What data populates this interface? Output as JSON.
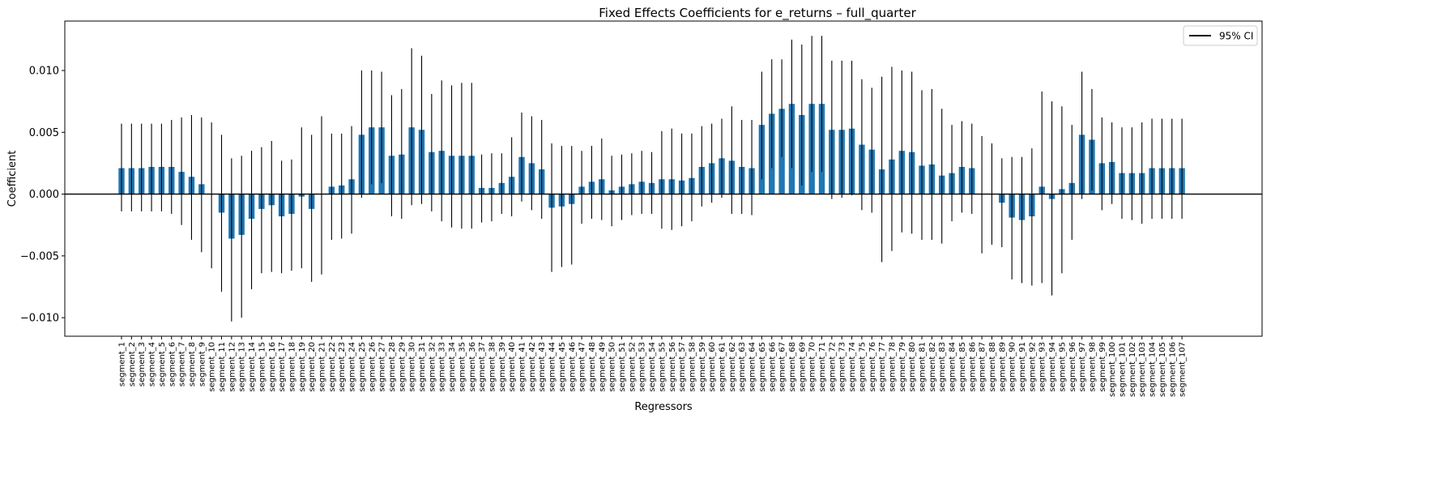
{
  "chart_data": {
    "type": "bar",
    "title": "Fixed Effects Coefficients for e_returns – full_quarter",
    "xlabel": "Regressors",
    "ylabel": "Coefficient",
    "ylim": [
      -0.0115,
      0.014
    ],
    "yticks": [
      -0.01,
      -0.005,
      0.0,
      0.005,
      0.01
    ],
    "ytick_labels": [
      "−0.010",
      "−0.005",
      "0.000",
      "0.005",
      "0.010"
    ],
    "legend": {
      "label": "95% CI",
      "placement": "top-right"
    },
    "bar_color": "#1f77b4",
    "errorbar_color": "#000000",
    "zero_line": true,
    "grid": false,
    "categories": [
      "segment_1",
      "segment_2",
      "segment_3",
      "segment_4",
      "segment_5",
      "segment_6",
      "segment_7",
      "segment_8",
      "segment_9",
      "segment_10",
      "segment_11",
      "segment_12",
      "segment_13",
      "segment_14",
      "segment_15",
      "segment_16",
      "segment_17",
      "segment_18",
      "segment_19",
      "segment_20",
      "segment_21",
      "segment_22",
      "segment_23",
      "segment_24",
      "segment_25",
      "segment_26",
      "segment_27",
      "segment_28",
      "segment_29",
      "segment_30",
      "segment_31",
      "segment_32",
      "segment_33",
      "segment_34",
      "segment_35",
      "segment_36",
      "segment_37",
      "segment_38",
      "segment_39",
      "segment_40",
      "segment_41",
      "segment_42",
      "segment_43",
      "segment_44",
      "segment_45",
      "segment_46",
      "segment_47",
      "segment_48",
      "segment_49",
      "segment_50",
      "segment_51",
      "segment_52",
      "segment_53",
      "segment_54",
      "segment_55",
      "segment_56",
      "segment_57",
      "segment_58",
      "segment_59",
      "segment_60",
      "segment_61",
      "segment_62",
      "segment_63",
      "segment_64",
      "segment_65",
      "segment_66",
      "segment_67",
      "segment_68",
      "segment_69",
      "segment_70",
      "segment_71",
      "segment_72",
      "segment_73",
      "segment_74",
      "segment_75",
      "segment_76",
      "segment_77",
      "segment_78",
      "segment_79",
      "segment_80",
      "segment_81",
      "segment_82",
      "segment_83",
      "segment_84",
      "segment_85",
      "segment_86",
      "segment_87",
      "segment_88",
      "segment_89",
      "segment_90",
      "segment_91",
      "segment_92",
      "segment_93",
      "segment_94",
      "segment_95",
      "segment_96",
      "segment_97",
      "segment_98",
      "segment_99",
      "segment_100",
      "segment_101",
      "segment_102",
      "segment_103",
      "segment_104",
      "segment_105",
      "segment_106",
      "segment_107"
    ],
    "values": [
      0.0021,
      0.0021,
      0.0021,
      0.0022,
      0.0022,
      0.0022,
      0.0018,
      0.0014,
      0.0008,
      0.0,
      -0.0015,
      -0.0036,
      -0.0033,
      -0.002,
      -0.0012,
      -0.0009,
      -0.0018,
      -0.0016,
      -0.0002,
      -0.0012,
      0.0,
      0.0006,
      0.0007,
      0.0012,
      0.0048,
      0.0054,
      0.0054,
      0.0031,
      0.0032,
      0.0054,
      0.0052,
      0.0034,
      0.0035,
      0.0031,
      0.0031,
      0.0031,
      0.0005,
      0.0005,
      0.0009,
      0.0014,
      0.003,
      0.0025,
      0.002,
      -0.0011,
      -0.001,
      -0.0008,
      0.0006,
      0.001,
      0.0012,
      0.0003,
      0.0006,
      0.0008,
      0.001,
      0.0009,
      0.0012,
      0.0012,
      0.0011,
      0.0013,
      0.0022,
      0.0025,
      0.0029,
      0.0027,
      0.0022,
      0.0021,
      0.0056,
      0.0065,
      0.0069,
      0.0073,
      0.0064,
      0.0073,
      0.0073,
      0.0052,
      0.0052,
      0.0053,
      0.004,
      0.0036,
      0.002,
      0.0028,
      0.0035,
      0.0034,
      0.0023,
      0.0024,
      0.0015,
      0.0017,
      0.0022,
      0.0021,
      0.0,
      0.0,
      -0.0007,
      -0.0019,
      -0.0021,
      -0.0018,
      0.0006,
      -0.0004,
      0.0004,
      0.0009,
      0.0048,
      0.0044,
      0.0025,
      0.0026,
      0.0017,
      0.0017,
      0.0017,
      0.0021,
      0.0021,
      0.0021,
      0.0021
    ],
    "ci_lower": [
      -0.0014,
      -0.0014,
      -0.0014,
      -0.0014,
      -0.0014,
      -0.0016,
      -0.0025,
      -0.0037,
      -0.0047,
      -0.006,
      -0.0079,
      -0.0103,
      -0.01,
      -0.0077,
      -0.0064,
      -0.0063,
      -0.0064,
      -0.0062,
      -0.006,
      -0.0071,
      -0.0065,
      -0.0037,
      -0.0036,
      -0.0032,
      -0.0003,
      0.0008,
      0.0009,
      -0.0018,
      -0.002,
      -0.0009,
      -0.0008,
      -0.0014,
      -0.0022,
      -0.0027,
      -0.0028,
      -0.0028,
      -0.0023,
      -0.0022,
      -0.0016,
      -0.0018,
      -0.0006,
      -0.0013,
      -0.002,
      -0.0063,
      -0.0059,
      -0.0057,
      -0.0024,
      -0.002,
      -0.0021,
      -0.0026,
      -0.0021,
      -0.0017,
      -0.0016,
      -0.0016,
      -0.0028,
      -0.0029,
      -0.0026,
      -0.0022,
      -0.001,
      -0.0007,
      -0.0003,
      -0.0016,
      -0.0016,
      -0.0017,
      0.0012,
      0.0021,
      0.003,
      0.0021,
      0.0007,
      0.0018,
      0.0018,
      -0.0004,
      -0.0003,
      -0.0001,
      -0.0013,
      -0.0015,
      -0.0055,
      -0.0046,
      -0.0031,
      -0.0032,
      -0.0037,
      -0.0037,
      -0.004,
      -0.0022,
      -0.0015,
      -0.0016,
      -0.0048,
      -0.0041,
      -0.0043,
      -0.0069,
      -0.0072,
      -0.0074,
      -0.0072,
      -0.0082,
      -0.0064,
      -0.0037,
      -0.0004,
      0.0003,
      -0.0013,
      -0.0008,
      -0.002,
      -0.0021,
      -0.0024,
      -0.002,
      -0.002,
      -0.002,
      -0.002
    ],
    "ci_upper": [
      0.0057,
      0.0057,
      0.0057,
      0.0057,
      0.0057,
      0.006,
      0.0062,
      0.0064,
      0.0062,
      0.0058,
      0.0048,
      0.0029,
      0.0031,
      0.0035,
      0.0038,
      0.0043,
      0.0027,
      0.0028,
      0.0054,
      0.0048,
      0.0063,
      0.0049,
      0.0049,
      0.0055,
      0.01,
      0.01,
      0.0099,
      0.008,
      0.0085,
      0.0118,
      0.0112,
      0.0081,
      0.0092,
      0.0088,
      0.009,
      0.009,
      0.0032,
      0.0033,
      0.0033,
      0.0046,
      0.0066,
      0.0063,
      0.006,
      0.0041,
      0.0039,
      0.0039,
      0.0035,
      0.0039,
      0.0045,
      0.0031,
      0.0032,
      0.0033,
      0.0035,
      0.0034,
      0.0051,
      0.0053,
      0.0049,
      0.0049,
      0.0055,
      0.0057,
      0.0061,
      0.0071,
      0.006,
      0.006,
      0.0099,
      0.0109,
      0.0109,
      0.0125,
      0.0121,
      0.0128,
      0.0128,
      0.0108,
      0.0108,
      0.0108,
      0.0093,
      0.0086,
      0.0095,
      0.0103,
      0.01,
      0.0099,
      0.0084,
      0.0085,
      0.0069,
      0.0056,
      0.0059,
      0.0057,
      0.0047,
      0.0041,
      0.0029,
      0.003,
      0.003,
      0.0037,
      0.0083,
      0.0075,
      0.0071,
      0.0056,
      0.0099,
      0.0085,
      0.0062,
      0.0058,
      0.0054,
      0.0054,
      0.0058,
      0.0061,
      0.0061,
      0.0061,
      0.0061
    ]
  }
}
